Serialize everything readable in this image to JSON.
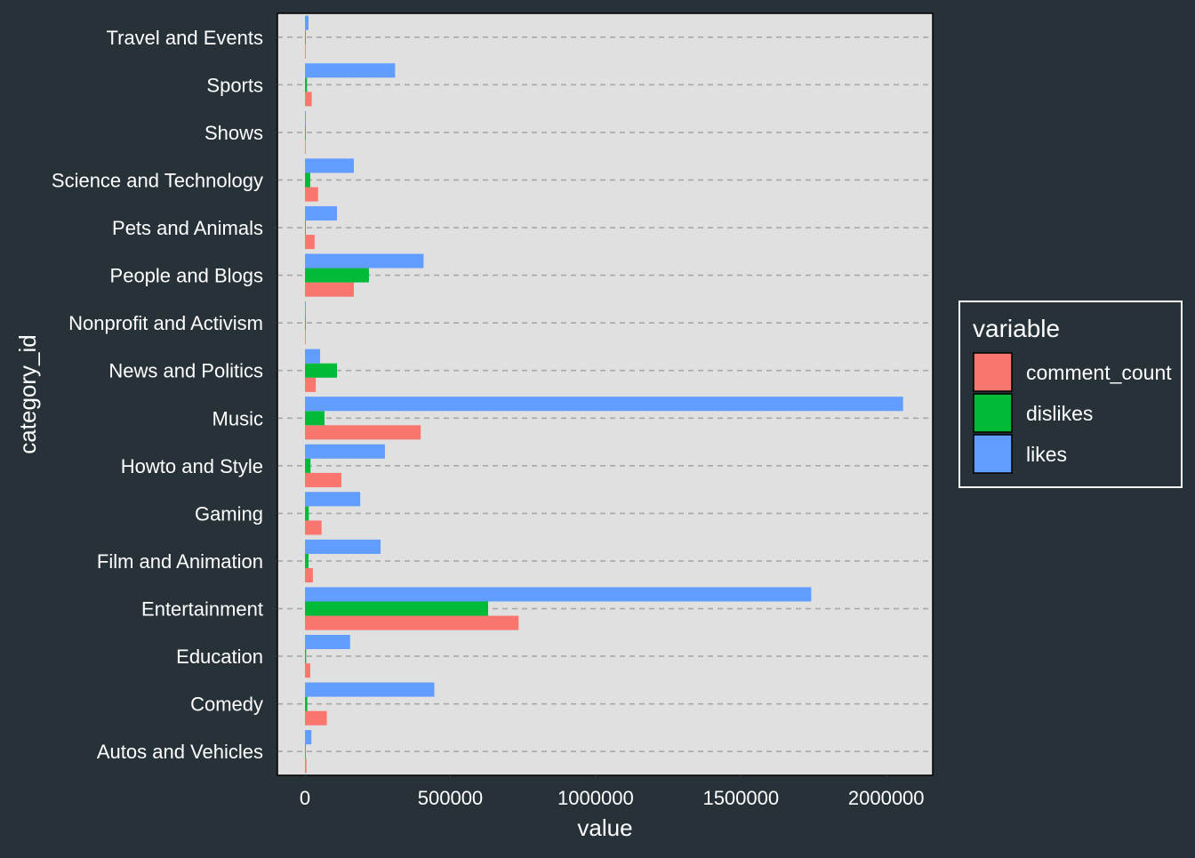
{
  "chart_data": {
    "type": "bar",
    "orientation": "horizontal",
    "categories": [
      "Autos and Vehicles",
      "Comedy",
      "Education",
      "Entertainment",
      "Film and Animation",
      "Gaming",
      "Howto and Style",
      "Music",
      "News and Politics",
      "Nonprofit and Activism",
      "People and Blogs",
      "Pets and Animals",
      "Science and Technology",
      "Shows",
      "Sports",
      "Travel and Events"
    ],
    "series": [
      {
        "name": "comment_count",
        "color": "#F8766D",
        "values": [
          5000,
          75000,
          18000,
          735000,
          27000,
          57000,
          125000,
          398000,
          37000,
          1000,
          168000,
          33000,
          45000,
          1500,
          23000,
          2000
        ]
      },
      {
        "name": "dislikes",
        "color": "#00BA38",
        "values": [
          1000,
          8000,
          4000,
          630000,
          12000,
          13000,
          19000,
          67000,
          110000,
          500,
          220000,
          2000,
          18000,
          500,
          7000,
          1500
        ]
      },
      {
        "name": "likes",
        "color": "#619CFF",
        "values": [
          22000,
          445000,
          155000,
          1742000,
          260000,
          190000,
          275000,
          2058000,
          52000,
          3000,
          408000,
          110000,
          168000,
          3000,
          310000,
          12000
        ]
      }
    ],
    "xlabel": "value",
    "ylabel": "category_id",
    "xlim": [
      -95000,
      2160000
    ],
    "x_ticks": [
      0,
      500000,
      1000000,
      1500000,
      2000000
    ],
    "x_tick_labels": [
      "0",
      "500000",
      "1000000",
      "1500000",
      "2000000"
    ],
    "grid": "horizontal dashed lines at categories",
    "panel_background": "#E0E0E0",
    "legend": {
      "title": "variable",
      "placement": "right"
    }
  }
}
